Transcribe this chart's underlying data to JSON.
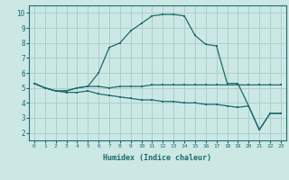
{
  "background_color": "#cce8e5",
  "grid_color": "#aacfcc",
  "line_color": "#1a6b6b",
  "xlabel": "Humidex (Indice chaleur)",
  "xlim": [
    -0.5,
    23.5
  ],
  "ylim": [
    1.5,
    10.5
  ],
  "xticks": [
    0,
    1,
    2,
    3,
    4,
    5,
    6,
    7,
    8,
    9,
    10,
    11,
    12,
    13,
    14,
    15,
    16,
    17,
    18,
    19,
    20,
    21,
    22,
    23
  ],
  "yticks": [
    2,
    3,
    4,
    5,
    6,
    7,
    8,
    9,
    10
  ],
  "series": [
    {
      "x": [
        0,
        1,
        2,
        3,
        4,
        5,
        6,
        7,
        8,
        9,
        10,
        11,
        12,
        13,
        14,
        15,
        16,
        17,
        18,
        19,
        20,
        21,
        22,
        23
      ],
      "y": [
        5.3,
        5.0,
        4.8,
        4.8,
        5.0,
        5.1,
        6.0,
        7.7,
        8.0,
        8.8,
        9.3,
        9.8,
        9.9,
        9.9,
        9.8,
        8.5,
        7.9,
        7.8,
        5.3,
        5.3,
        3.8,
        2.2,
        3.3,
        3.3
      ]
    },
    {
      "x": [
        0,
        1,
        2,
        3,
        4,
        5,
        6,
        7,
        8,
        9,
        10,
        11,
        12,
        13,
        14,
        15,
        16,
        17,
        18,
        19,
        20,
        21,
        22,
        23
      ],
      "y": [
        5.3,
        5.0,
        4.8,
        4.7,
        4.7,
        4.8,
        4.6,
        4.5,
        4.4,
        4.3,
        4.2,
        4.2,
        4.1,
        4.1,
        4.0,
        4.0,
        3.9,
        3.9,
        3.8,
        3.7,
        3.8,
        2.2,
        3.3,
        3.3
      ]
    },
    {
      "x": [
        0,
        1,
        2,
        3,
        4,
        5,
        6,
        7,
        8,
        9,
        10,
        11,
        12,
        13,
        14,
        15,
        16,
        17,
        18,
        19,
        20,
        21,
        22,
        23
      ],
      "y": [
        5.3,
        5.0,
        4.8,
        4.8,
        5.0,
        5.1,
        5.1,
        5.0,
        5.1,
        5.1,
        5.1,
        5.2,
        5.2,
        5.2,
        5.2,
        5.2,
        5.2,
        5.2,
        5.2,
        5.2,
        5.2,
        5.2,
        5.2,
        5.2
      ]
    }
  ]
}
